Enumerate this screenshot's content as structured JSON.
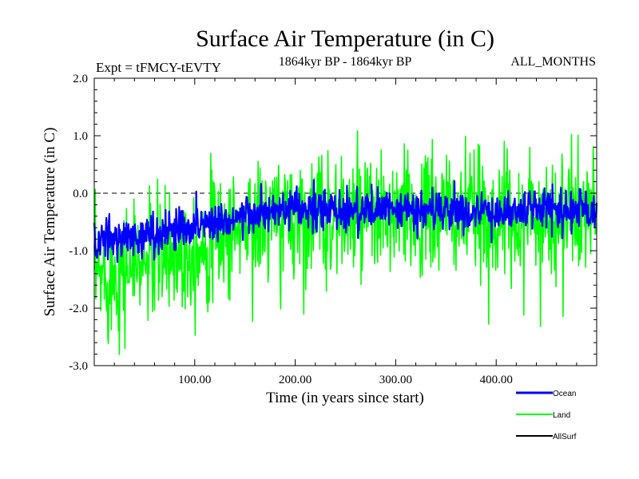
{
  "chart_data": {
    "type": "line",
    "title": "Surface Air Temperature (in C)",
    "subtitle_left": "Expt = tFMCY-tEVTY",
    "subtitle_center": "1864kyr BP - 1864kyr BP",
    "subtitle_right": "ALL_MONTHS",
    "xlabel": "Time (in years since start)",
    "ylabel": "Surface Air Temperature (in C)",
    "xlim": [
      0,
      500
    ],
    "ylim": [
      -3.0,
      2.0
    ],
    "x_ticks": [
      100,
      200,
      300,
      400
    ],
    "x_tick_labels": [
      "100.00",
      "200.00",
      "300.00",
      "400.00"
    ],
    "y_ticks": [
      2.0,
      1.0,
      0.0,
      -1.0,
      -2.0,
      -3.0
    ],
    "y_tick_labels": [
      "2.0",
      "1.0",
      "0.0",
      "-1.0",
      "-2.0",
      "-3.0"
    ],
    "reference_line": 0.0,
    "series": [
      {
        "name": "Ocean",
        "color": "#0000ff",
        "trend_x": [
          0,
          50,
          100,
          150,
          200,
          250,
          300,
          350,
          400,
          450,
          500
        ],
        "trend_y": [
          -0.85,
          -0.75,
          -0.55,
          -0.4,
          -0.3,
          -0.3,
          -0.3,
          -0.3,
          -0.35,
          -0.25,
          -0.3
        ],
        "amplitude": 0.18
      },
      {
        "name": "Land",
        "color": "#00ff00",
        "trend_x": [
          0,
          50,
          100,
          150,
          200,
          250,
          300,
          350,
          400,
          450,
          500
        ],
        "trend_y": [
          -1.5,
          -1.2,
          -0.95,
          -0.55,
          -0.4,
          -0.4,
          -0.45,
          -0.35,
          -0.45,
          -0.4,
          -0.35
        ],
        "amplitude": 0.55
      },
      {
        "name": "AllSurf",
        "color": "#000000",
        "trend_x": [],
        "trend_y": [],
        "amplitude": 0
      }
    ]
  }
}
